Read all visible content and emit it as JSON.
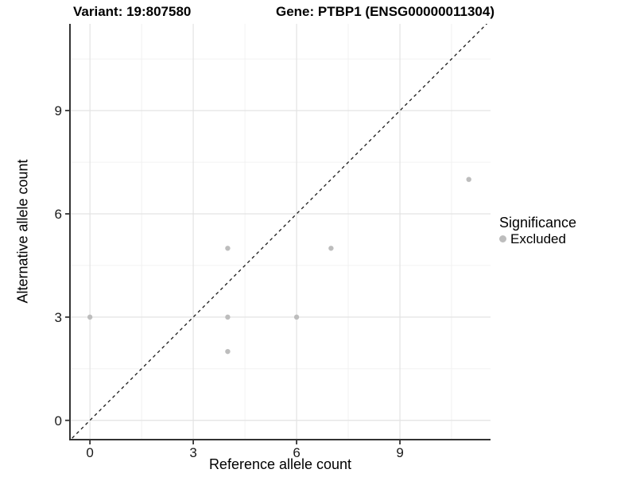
{
  "chart_data": {
    "type": "scatter",
    "titles": {
      "variant": "Variant: 19:807580",
      "gene": "Gene: PTBP1 (ENSG00000011304)"
    },
    "xlabel": "Reference allele count",
    "ylabel": "Alternative allele count",
    "x_ticks": [
      0,
      3,
      6,
      9
    ],
    "y_ticks": [
      0,
      3,
      6,
      9
    ],
    "x_minor_gridlines": [
      1.5,
      4.5,
      7.5,
      10.5
    ],
    "y_minor_gridlines": [
      1.5,
      4.5,
      7.5,
      10.5
    ],
    "xlim": [
      -0.58,
      11.63
    ],
    "ylim": [
      -0.56,
      11.52
    ],
    "grid": true,
    "reference_line": {
      "type": "identity",
      "equation": "y = x",
      "style": "dashed",
      "color": "#1a1a1a"
    },
    "series": [
      {
        "name": "Excluded",
        "marker": "circle",
        "color": "#bdbdbd",
        "points": [
          {
            "x": 0,
            "y": 3
          },
          {
            "x": 4,
            "y": 2
          },
          {
            "x": 4,
            "y": 3
          },
          {
            "x": 4,
            "y": 5
          },
          {
            "x": 6,
            "y": 3
          },
          {
            "x": 7,
            "y": 5
          },
          {
            "x": 11,
            "y": 7
          }
        ]
      }
    ],
    "legend": {
      "title": "Significance",
      "position": "right",
      "items": [
        {
          "label": "Excluded",
          "color": "#bdbdbd"
        }
      ]
    }
  },
  "style": {
    "background": "#ffffff",
    "axis_line_color": "#333333",
    "tick_color": "#333333",
    "major_grid_color": "#e3e3e3",
    "minor_grid_color": "#f0f0f0",
    "tick_label_color": "#1a1a1a",
    "dashed_line_color": "#1a1a1a"
  }
}
